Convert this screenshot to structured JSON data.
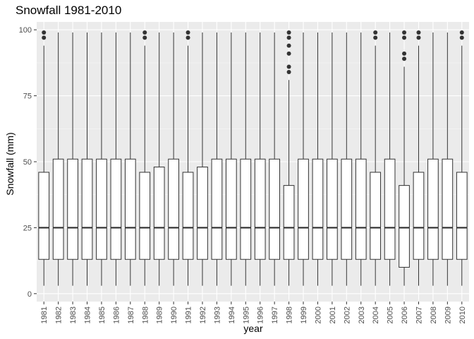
{
  "chart_data": {
    "type": "boxplot",
    "title": "Snowfall 1981-2010",
    "xlabel": "year",
    "ylabel": "Snowfall (mm)",
    "ylim": [
      -3,
      103
    ],
    "yticks": [
      0,
      25,
      50,
      75,
      100
    ],
    "grid": true,
    "categories": [
      "1981",
      "1982",
      "1983",
      "1984",
      "1985",
      "1986",
      "1987",
      "1988",
      "1989",
      "1990",
      "1991",
      "1992",
      "1993",
      "1994",
      "1995",
      "1996",
      "1997",
      "1998",
      "1999",
      "2000",
      "2001",
      "2002",
      "2003",
      "2004",
      "2005",
      "2006",
      "2007",
      "2008",
      "2009",
      "2010"
    ],
    "boxes": [
      {
        "min": 3,
        "q1": 13,
        "median": 25,
        "q3": 46,
        "max": 94,
        "outliers": [
          97,
          99
        ]
      },
      {
        "min": 3,
        "q1": 13,
        "median": 25,
        "q3": 51,
        "max": 99,
        "outliers": []
      },
      {
        "min": 3,
        "q1": 13,
        "median": 25,
        "q3": 51,
        "max": 99,
        "outliers": []
      },
      {
        "min": 3,
        "q1": 13,
        "median": 25,
        "q3": 51,
        "max": 99,
        "outliers": []
      },
      {
        "min": 3,
        "q1": 13,
        "median": 25,
        "q3": 51,
        "max": 99,
        "outliers": []
      },
      {
        "min": 3,
        "q1": 13,
        "median": 25,
        "q3": 51,
        "max": 99,
        "outliers": []
      },
      {
        "min": 3,
        "q1": 13,
        "median": 25,
        "q3": 51,
        "max": 99,
        "outliers": []
      },
      {
        "min": 3,
        "q1": 13,
        "median": 25,
        "q3": 46,
        "max": 94,
        "outliers": [
          97,
          99
        ]
      },
      {
        "min": 3,
        "q1": 13,
        "median": 25,
        "q3": 48,
        "max": 99,
        "outliers": []
      },
      {
        "min": 3,
        "q1": 13,
        "median": 25,
        "q3": 51,
        "max": 99,
        "outliers": []
      },
      {
        "min": 3,
        "q1": 13,
        "median": 25,
        "q3": 46,
        "max": 94,
        "outliers": [
          97,
          99
        ]
      },
      {
        "min": 3,
        "q1": 13,
        "median": 25,
        "q3": 48,
        "max": 99,
        "outliers": []
      },
      {
        "min": 3,
        "q1": 13,
        "median": 25,
        "q3": 51,
        "max": 99,
        "outliers": []
      },
      {
        "min": 3,
        "q1": 13,
        "median": 25,
        "q3": 51,
        "max": 99,
        "outliers": []
      },
      {
        "min": 3,
        "q1": 13,
        "median": 25,
        "q3": 51,
        "max": 99,
        "outliers": []
      },
      {
        "min": 3,
        "q1": 13,
        "median": 25,
        "q3": 51,
        "max": 99,
        "outliers": []
      },
      {
        "min": 3,
        "q1": 13,
        "median": 25,
        "q3": 51,
        "max": 99,
        "outliers": []
      },
      {
        "min": 3,
        "q1": 13,
        "median": 25,
        "q3": 41,
        "max": 81,
        "outliers": [
          84,
          86,
          91,
          94,
          97,
          99
        ]
      },
      {
        "min": 3,
        "q1": 13,
        "median": 25,
        "q3": 51,
        "max": 99,
        "outliers": []
      },
      {
        "min": 3,
        "q1": 13,
        "median": 25,
        "q3": 51,
        "max": 99,
        "outliers": []
      },
      {
        "min": 3,
        "q1": 13,
        "median": 25,
        "q3": 51,
        "max": 99,
        "outliers": []
      },
      {
        "min": 3,
        "q1": 13,
        "median": 25,
        "q3": 51,
        "max": 99,
        "outliers": []
      },
      {
        "min": 3,
        "q1": 13,
        "median": 25,
        "q3": 51,
        "max": 99,
        "outliers": []
      },
      {
        "min": 3,
        "q1": 13,
        "median": 25,
        "q3": 46,
        "max": 94,
        "outliers": [
          97,
          99
        ]
      },
      {
        "min": 3,
        "q1": 13,
        "median": 25,
        "q3": 51,
        "max": 99,
        "outliers": []
      },
      {
        "min": 3,
        "q1": 10,
        "median": 25,
        "q3": 41,
        "max": 86,
        "outliers": [
          89,
          91,
          97,
          99
        ]
      },
      {
        "min": 3,
        "q1": 13,
        "median": 25,
        "q3": 46,
        "max": 94,
        "outliers": [
          97,
          99
        ]
      },
      {
        "min": 3,
        "q1": 13,
        "median": 25,
        "q3": 51,
        "max": 99,
        "outliers": []
      },
      {
        "min": 3,
        "q1": 13,
        "median": 25,
        "q3": 51,
        "max": 99,
        "outliers": []
      },
      {
        "min": 3,
        "q1": 13,
        "median": 25,
        "q3": 46,
        "max": 94,
        "outliers": [
          97,
          99
        ]
      }
    ],
    "colors": {
      "panel_background": "#ebebeb",
      "grid_major": "#ffffff",
      "grid_minor": "#f5f5f5",
      "box_fill": "#ffffff",
      "box_stroke": "#333333",
      "tick_text": "#4d4d4d",
      "tick_mark": "#333333"
    }
  }
}
